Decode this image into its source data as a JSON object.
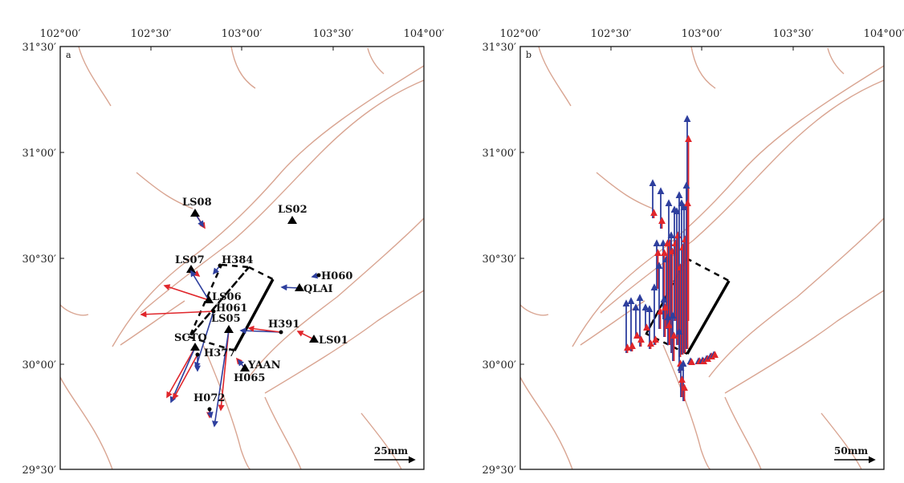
{
  "colors": {
    "fault": "#d9a592",
    "observed": "#e0262b",
    "modeled": "#2e3f9e",
    "rupture": "#000000"
  },
  "x_ticks": [
    "102°00′",
    "102°30′",
    "103°00′",
    "103°30′",
    "104°00′"
  ],
  "y_ticks": [
    "31°30′",
    "31°00′",
    "30°30′",
    "30°00′",
    "29°30′"
  ],
  "panel_a": {
    "label": "a",
    "scale_label": "25mm",
    "stations": [
      "LS08",
      "LS02",
      "LS07",
      "H384",
      "H060",
      "QLAI",
      "LS06",
      "H061",
      "LS05",
      "H391",
      "LS01",
      "SCTQ",
      "H377",
      "YAAN",
      "H065",
      "H072"
    ]
  },
  "panel_b": {
    "label": "b",
    "scale_label": "50mm"
  }
}
